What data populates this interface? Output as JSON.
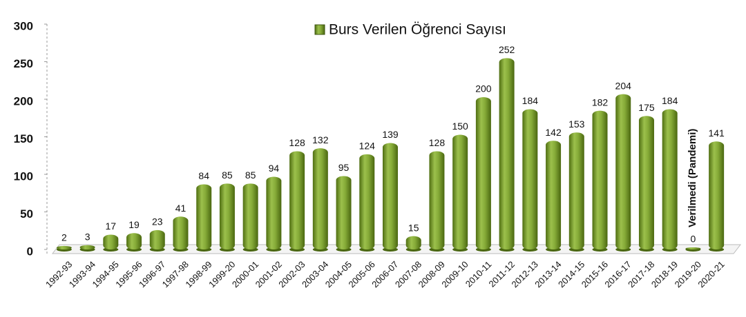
{
  "chart_data": {
    "type": "bar",
    "categories": [
      "1992-93",
      "1993-94",
      "1994-95",
      "1995-96",
      "1996-97",
      "1997-98",
      "1998-99",
      "1999-20",
      "2000-01",
      "2001-02",
      "2002-03",
      "2003-04",
      "2004-05",
      "2005-06",
      "2006-07",
      "2007-08",
      "2008-09",
      "2009-10",
      "2010-11",
      "2011-12",
      "2012-13",
      "2013-14",
      "2014-15",
      "2015-16",
      "2016-17",
      "2017-18",
      "2018-19",
      "2019-20",
      "2020-21"
    ],
    "series": [
      {
        "name": "Burs Verilen Öğrenci Sayısı",
        "color": "#7a9e2e",
        "values": [
          2,
          3,
          17,
          19,
          23,
          41,
          84,
          85,
          85,
          94,
          128,
          132,
          95,
          124,
          139,
          15,
          128,
          150,
          200,
          252,
          184,
          142,
          153,
          182,
          204,
          175,
          184,
          0,
          141
        ]
      }
    ],
    "ylim": [
      0,
      300
    ],
    "yticks": [
      0,
      50,
      100,
      150,
      200,
      250,
      300
    ],
    "annotation": "Verilmedi  (Pandemi)",
    "legend": "top"
  }
}
